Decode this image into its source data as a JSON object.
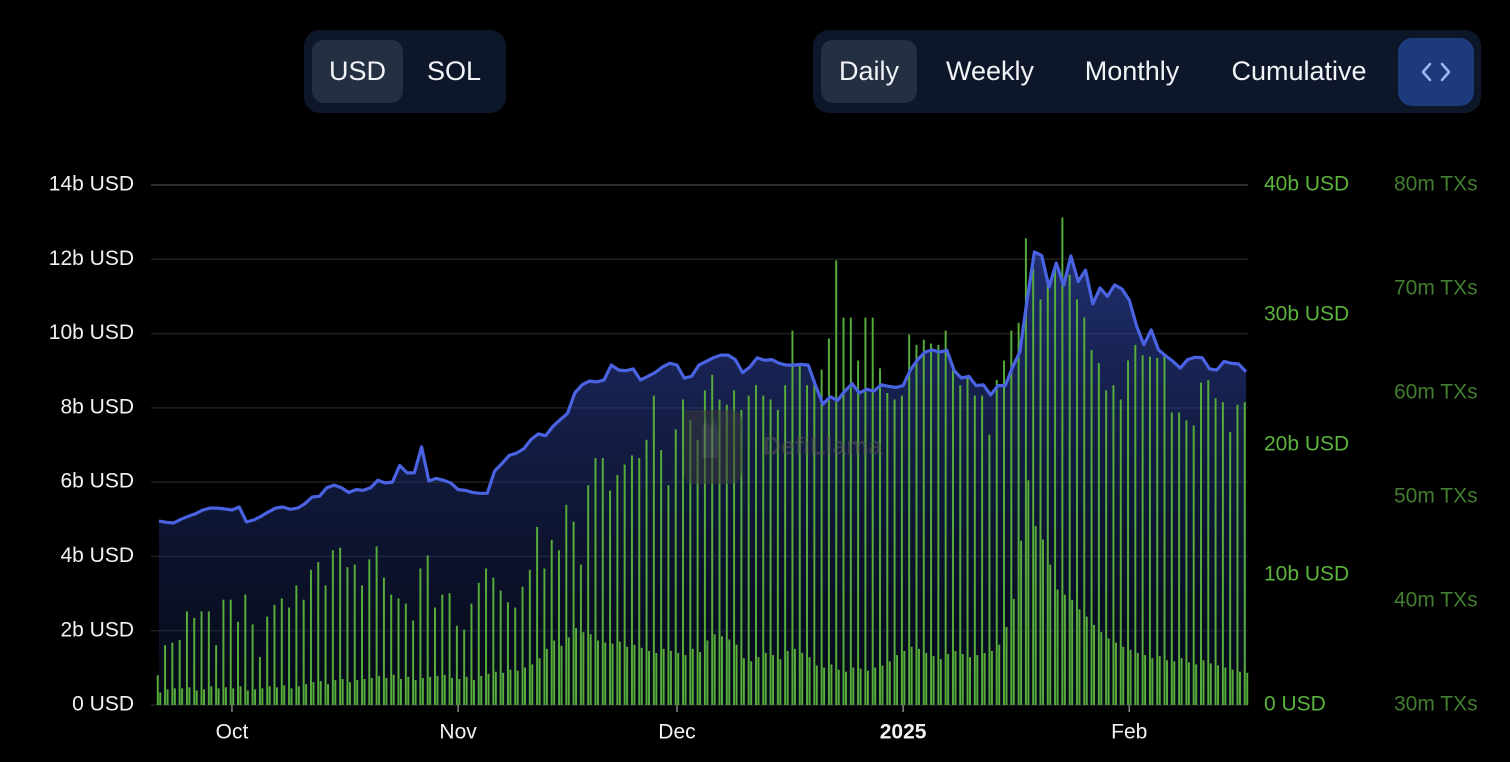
{
  "controls": {
    "currency": [
      "USD",
      "SOL"
    ],
    "period": [
      "Daily",
      "Weekly",
      "Monthly",
      "Cumulative"
    ]
  },
  "watermark": "DefiLlama",
  "chart_data": {
    "type": "combo",
    "categories": [
      null,
      null,
      null,
      null,
      null,
      null,
      null,
      null,
      null,
      null,
      "Oct",
      null,
      null,
      null,
      null,
      null,
      null,
      null,
      null,
      null,
      null,
      null,
      null,
      null,
      null,
      null,
      null,
      null,
      null,
      null,
      null,
      null,
      null,
      null,
      null,
      null,
      null,
      null,
      null,
      null,
      null,
      "Nov",
      null,
      null,
      null,
      null,
      null,
      null,
      null,
      null,
      null,
      null,
      null,
      null,
      null,
      null,
      null,
      null,
      null,
      null,
      null,
      null,
      null,
      null,
      null,
      null,
      null,
      null,
      null,
      null,
      null,
      "Dec",
      null,
      null,
      null,
      null,
      null,
      null,
      null,
      null,
      null,
      null,
      null,
      null,
      null,
      null,
      null,
      null,
      null,
      null,
      null,
      null,
      null,
      null,
      null,
      null,
      null,
      null,
      null,
      null,
      null,
      null,
      "2025",
      null,
      null,
      null,
      null,
      null,
      null,
      null,
      null,
      null,
      null,
      null,
      null,
      null,
      null,
      null,
      null,
      null,
      null,
      null,
      null,
      null,
      null,
      null,
      null,
      null,
      null,
      null,
      null,
      null,
      null,
      "Feb",
      null,
      null,
      null,
      null,
      null,
      null,
      null,
      null,
      null,
      null,
      null,
      null,
      null,
      null,
      null,
      null
    ],
    "series": [
      {
        "type": "area",
        "axis": "y",
        "color": "#4a63e2",
        "values": [
          4.95,
          4.92,
          4.9,
          5.0,
          5.08,
          5.15,
          5.25,
          5.3,
          5.3,
          5.28,
          5.25,
          5.33,
          4.93,
          4.98,
          5.08,
          5.2,
          5.3,
          5.33,
          5.27,
          5.3,
          5.42,
          5.6,
          5.62,
          5.85,
          5.92,
          5.85,
          5.72,
          5.8,
          5.78,
          5.85,
          6.05,
          5.98,
          6.0,
          6.45,
          6.25,
          6.25,
          6.95,
          6.03,
          6.1,
          6.05,
          5.98,
          5.8,
          5.78,
          5.72,
          5.7,
          5.7,
          6.3,
          6.5,
          6.72,
          6.78,
          6.9,
          7.15,
          7.3,
          7.25,
          7.5,
          7.68,
          7.85,
          8.4,
          8.62,
          8.72,
          8.7,
          8.75,
          9.15,
          9.02,
          9.0,
          9.05,
          8.75,
          8.85,
          8.95,
          9.1,
          9.2,
          9.15,
          8.8,
          8.85,
          9.15,
          9.25,
          9.35,
          9.42,
          9.42,
          9.3,
          8.95,
          9.1,
          9.35,
          9.28,
          9.3,
          9.2,
          9.15,
          9.15,
          9.17,
          9.15,
          8.6,
          8.1,
          8.3,
          8.2,
          8.45,
          8.65,
          8.4,
          8.5,
          8.45,
          8.62,
          8.58,
          8.55,
          8.6,
          9.02,
          9.3,
          9.5,
          9.56,
          9.5,
          9.55,
          9.0,
          8.8,
          8.85,
          8.6,
          8.62,
          8.35,
          8.6,
          8.6,
          9.1,
          9.5,
          10.9,
          12.2,
          12.1,
          11.25,
          11.9,
          11.3,
          12.09,
          11.4,
          11.71,
          10.8,
          11.23,
          11.0,
          11.31,
          11.2,
          10.9,
          10.2,
          9.7,
          10.1,
          9.56,
          9.4,
          9.25,
          9.07,
          9.3,
          9.36,
          9.35,
          9.05,
          9.02,
          9.25,
          9.2,
          9.18,
          8.97
        ]
      },
      {
        "type": "bar",
        "axis": "y2",
        "color": "#56ad3b",
        "values": [
          2.3,
          4.6,
          4.8,
          5.0,
          7.2,
          6.7,
          7.2,
          7.2,
          4.6,
          8.1,
          8.1,
          6.4,
          8.5,
          6.2,
          3.7,
          6.8,
          7.7,
          8.2,
          7.5,
          9.2,
          8.1,
          10.4,
          11.0,
          9.2,
          11.9,
          12.1,
          10.6,
          10.8,
          9.2,
          11.2,
          12.2,
          9.8,
          8.5,
          8.2,
          7.8,
          6.5,
          10.5,
          11.5,
          7.5,
          8.5,
          8.6,
          6.1,
          5.8,
          7.8,
          9.4,
          10.5,
          9.8,
          8.8,
          7.9,
          7.5,
          9.1,
          10.4,
          13.7,
          10.5,
          12.7,
          11.9,
          15.4,
          14.1,
          10.8,
          16.9,
          19.0,
          19.0,
          16.5,
          17.7,
          18.5,
          19.2,
          19.0,
          20.4,
          23.8,
          19.6,
          16.9,
          21.2,
          23.5,
          21.9,
          20.4,
          24.2,
          25.4,
          23.5,
          23.1,
          24.2,
          22.7,
          23.8,
          24.6,
          23.8,
          23.5,
          22.7,
          24.6,
          28.8,
          26.2,
          24.6,
          25.0,
          25.8,
          28.2,
          34.2,
          29.8,
          29.8,
          26.5,
          29.8,
          29.8,
          25.9,
          24.0,
          23.5,
          23.8,
          28.5,
          27.7,
          28.1,
          27.8,
          27.7,
          28.8,
          26.2,
          24.6,
          25.2,
          23.8,
          23.8,
          20.8,
          25.0,
          26.5,
          28.8,
          29.4,
          35.9,
          33.6,
          31.2,
          32.7,
          33.5,
          37.5,
          33.1,
          31.2,
          29.8,
          27.3,
          26.3,
          24.2,
          24.6,
          23.5,
          26.5,
          27.7,
          26.9,
          26.8,
          26.7,
          26.9,
          22.5,
          22.5,
          21.9,
          21.5,
          24.8,
          25.0,
          23.6,
          23.3,
          21.0,
          23.1,
          23.3
        ]
      },
      {
        "type": "bar",
        "axis": "y3",
        "color": "#56ad3b",
        "values": [
          31.2,
          31.5,
          31.6,
          31.6,
          31.7,
          31.4,
          31.5,
          31.8,
          31.6,
          31.7,
          31.6,
          31.8,
          31.4,
          31.5,
          31.6,
          31.8,
          31.7,
          31.9,
          31.6,
          31.8,
          32.0,
          32.2,
          32.3,
          32.0,
          32.4,
          32.5,
          32.2,
          32.4,
          32.5,
          32.6,
          32.8,
          32.6,
          32.9,
          32.5,
          32.7,
          32.4,
          32.6,
          32.7,
          32.8,
          32.9,
          32.6,
          32.5,
          32.7,
          32.4,
          32.8,
          33.0,
          33.2,
          33.1,
          33.4,
          33.3,
          33.6,
          33.9,
          34.5,
          35.4,
          36.2,
          35.7,
          36.5,
          37.4,
          37.0,
          36.8,
          36.2,
          36.0,
          35.9,
          36.1,
          35.6,
          35.8,
          35.5,
          35.2,
          35.0,
          35.4,
          35.2,
          35.0,
          34.8,
          35.4,
          35.1,
          36.2,
          36.8,
          36.6,
          36.3,
          35.8,
          34.5,
          34.2,
          34.6,
          35.0,
          34.8,
          34.4,
          35.2,
          35.4,
          35.0,
          34.6,
          33.8,
          33.6,
          33.9,
          33.4,
          33.2,
          33.6,
          33.5,
          33.3,
          33.6,
          33.8,
          34.2,
          34.8,
          35.2,
          35.6,
          35.4,
          35.0,
          34.7,
          34.4,
          34.9,
          35.2,
          34.9,
          34.6,
          34.8,
          35.0,
          35.2,
          35.8,
          37.5,
          40.2,
          45.8,
          51.6,
          47.2,
          45.9,
          43.5,
          41.1,
          40.6,
          40.1,
          39.2,
          38.5,
          37.7,
          37.0,
          36.4,
          36.0,
          35.6,
          35.3,
          35.0,
          34.8,
          34.5,
          34.7,
          34.3,
          34.2,
          34.5,
          34.1,
          33.9,
          34.3,
          34.0,
          33.8,
          33.6,
          33.4,
          33.2,
          33.1
        ]
      }
    ],
    "ylim": [
      0,
      14
    ],
    "yticks": [
      {
        "value": 0,
        "label": "0 USD"
      },
      {
        "value": 2,
        "label": "2b USD"
      },
      {
        "value": 4,
        "label": "4b USD"
      },
      {
        "value": 6,
        "label": "6b USD"
      },
      {
        "value": 8,
        "label": "8b USD"
      },
      {
        "value": 10,
        "label": "10b USD"
      },
      {
        "value": 12,
        "label": "12b USD"
      },
      {
        "value": 14,
        "label": "14b USD"
      }
    ],
    "y2lim": [
      0,
      40
    ],
    "y2ticks": [
      {
        "value": 0,
        "label": "0 USD"
      },
      {
        "value": 10,
        "label": "10b USD"
      },
      {
        "value": 20,
        "label": "20b USD"
      },
      {
        "value": 30,
        "label": "30b USD"
      },
      {
        "value": 40,
        "label": "40b USD"
      }
    ],
    "y2_label_color": "#5cb33d",
    "y3lim": [
      30,
      80
    ],
    "y3ticks": [
      {
        "value": 30,
        "label": "30m TXs"
      },
      {
        "value": 40,
        "label": "40m TXs"
      },
      {
        "value": 50,
        "label": "50m TXs"
      },
      {
        "value": 60,
        "label": "60m TXs"
      },
      {
        "value": 70,
        "label": "70m TXs"
      },
      {
        "value": 80,
        "label": "80m TXs"
      }
    ],
    "y3_label_color": "#437d2f",
    "grid": true
  }
}
